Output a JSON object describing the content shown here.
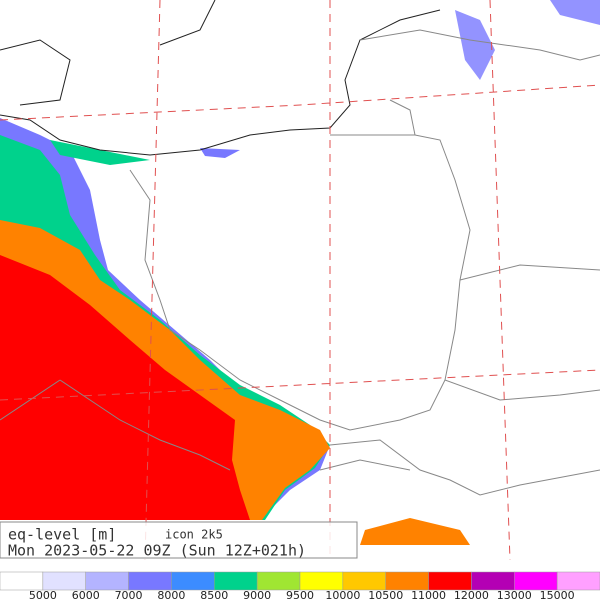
{
  "header": {
    "title": "eq-level [m]",
    "model": "icon 2k5",
    "time": "Mon 2023-05-22 09Z (Sun 12Z+021h)"
  },
  "legend": {
    "colors": [
      "#ffffff",
      "#e1e1ff",
      "#b4b4ff",
      "#7878ff",
      "#3c8cff",
      "#00d28c",
      "#a0e632",
      "#ffff00",
      "#ffc800",
      "#ff8200",
      "#ff0000",
      "#b400b4",
      "#ff00ff",
      "#ffa0ff"
    ],
    "labels": [
      "5000",
      "6000",
      "7000",
      "8000",
      "8500",
      "9000",
      "9500",
      "10000",
      "10500",
      "11000",
      "12000",
      "13000",
      "15000"
    ]
  }
}
